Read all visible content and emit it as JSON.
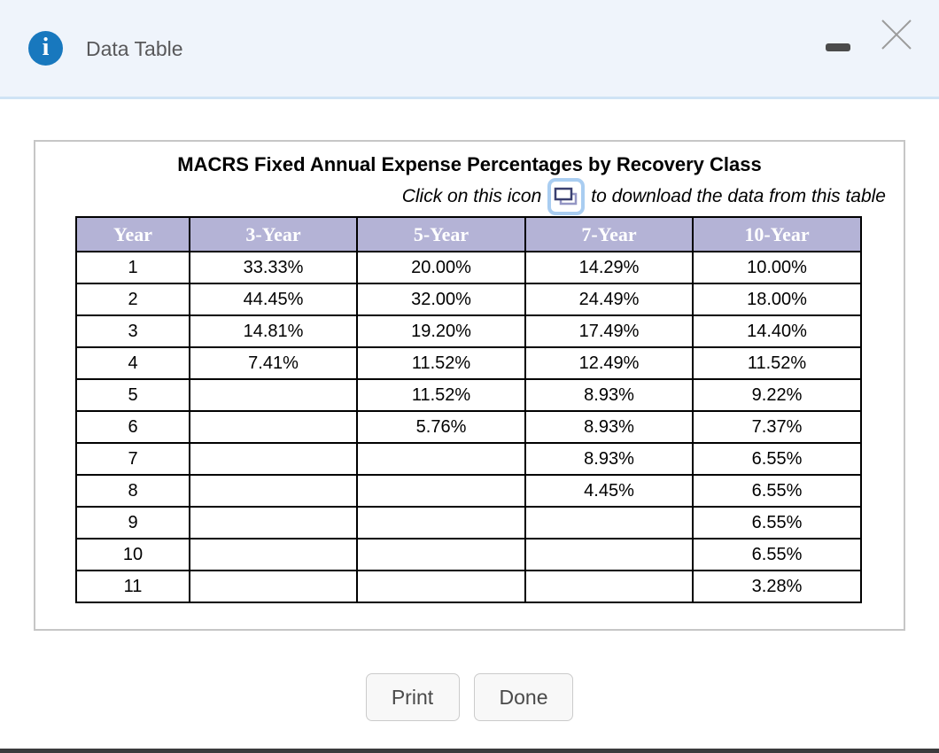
{
  "window": {
    "title": "Data Table",
    "info_icon_glyph": "i"
  },
  "panel": {
    "title": "MACRS Fixed Annual Expense Percentages by Recovery Class",
    "subtitle_before": "Click on this icon",
    "subtitle_after": "to download the data from this table"
  },
  "table": {
    "headers": [
      "Year",
      "3-Year",
      "5-Year",
      "7-Year",
      "10-Year"
    ],
    "rows": [
      [
        "1",
        "33.33%",
        "20.00%",
        "14.29%",
        "10.00%"
      ],
      [
        "2",
        "44.45%",
        "32.00%",
        "24.49%",
        "18.00%"
      ],
      [
        "3",
        "14.81%",
        "19.20%",
        "17.49%",
        "14.40%"
      ],
      [
        "4",
        "7.41%",
        "11.52%",
        "12.49%",
        "11.52%"
      ],
      [
        "5",
        "",
        "11.52%",
        "8.93%",
        "9.22%"
      ],
      [
        "6",
        "",
        "5.76%",
        "8.93%",
        "7.37%"
      ],
      [
        "7",
        "",
        "",
        "8.93%",
        "6.55%"
      ],
      [
        "8",
        "",
        "",
        "4.45%",
        "6.55%"
      ],
      [
        "9",
        "",
        "",
        "",
        "6.55%"
      ],
      [
        "10",
        "",
        "",
        "",
        "6.55%"
      ],
      [
        "11",
        "",
        "",
        "",
        "3.28%"
      ]
    ]
  },
  "buttons": {
    "print": "Print",
    "done": "Done"
  },
  "colors": {
    "titlebar_bg": "#eff4fb",
    "titlebar_border": "#cfe3f5",
    "info_icon_bg": "#1878be",
    "table_header_bg": "#b4b3d6",
    "table_header_text": "#ffffff",
    "download_icon_border": "#a9cdf1",
    "download_icon_front": "#3a4070",
    "download_icon_back": "#9496c4",
    "bottom_edge": "#3b3b3c"
  }
}
